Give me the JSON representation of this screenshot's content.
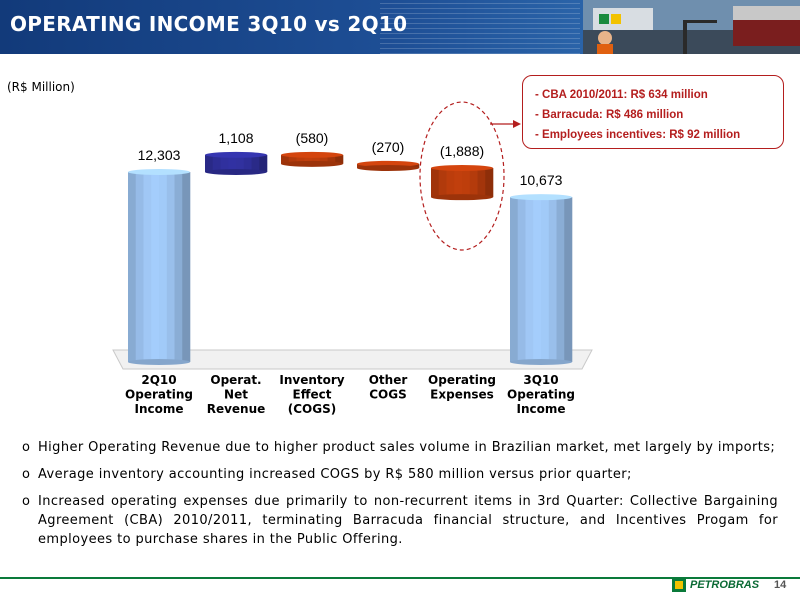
{
  "header": {
    "title": "OPERATING INCOME 3Q10 vs 2Q10"
  },
  "unit_label": "(R$ Million)",
  "chart_data": {
    "type": "bar",
    "subtype": "waterfall",
    "categories": [
      [
        "2Q10",
        "Operating",
        "Income"
      ],
      [
        "Operat.",
        "Net",
        "Revenue"
      ],
      [
        "Inventory",
        "Effect",
        "(COGS)"
      ],
      [
        "Other",
        "COGS"
      ],
      [
        "Operating",
        "Expenses"
      ],
      [
        "3Q10",
        "Operating",
        "Income"
      ]
    ],
    "values": [
      12303,
      1108,
      -580,
      -270,
      -1888,
      10673
    ],
    "value_labels": [
      "12,303",
      "1,108",
      "(580)",
      "(270)",
      "(1,888)",
      "10,673"
    ],
    "kinds": [
      "total",
      "increase",
      "decrease",
      "decrease",
      "decrease",
      "total"
    ],
    "colors": {
      "total": "#9cc3f0",
      "increase": "#2f2f9a",
      "decrease": "#b83c0c"
    },
    "grid": false,
    "legend": "none"
  },
  "callout": {
    "items": [
      "CBA 2010/2011: R$ 634 million",
      "Barracuda: R$ 486 million",
      "Employees incentives: R$ 92 million"
    ]
  },
  "bullets": [
    "Higher Operating Revenue due to higher product sales volume in Brazilian market, met largely by imports;",
    "Average inventory accounting increased COGS by R$ 580 million versus prior quarter;",
    "Increased operating expenses due primarily to non-recurrent items in 3rd Quarter: Collective Bargaining Agreement (CBA) 2010/2011, terminating Barracuda financial structure, and Incentives Progam for employees to purchase shares in the Public Offering."
  ],
  "footer": {
    "brand": "PETROBRAS",
    "page_number": "14"
  }
}
